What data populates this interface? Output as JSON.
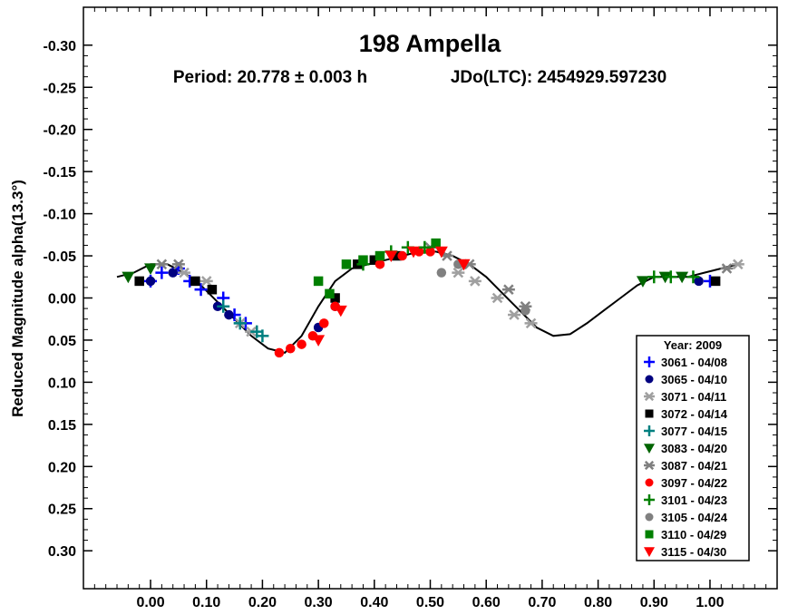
{
  "chart_data": {
    "type": "scatter",
    "title": "198 Ampella",
    "subtitle_period": "Period: 20.778 ± 0.003 h",
    "subtitle_epoch": "JDo(LTC): 2454929.597230",
    "xlabel": "",
    "ylabel": "Reduced Magnitude alpha(13.3°)",
    "xlim": [
      -0.12,
      1.12
    ],
    "ylim": [
      -0.345,
      0.345
    ],
    "y_inverted": true,
    "x_ticks": [
      "0.00",
      "0.10",
      "0.20",
      "0.30",
      "0.40",
      "0.50",
      "0.60",
      "0.70",
      "0.80",
      "0.90",
      "1.00"
    ],
    "x_tick_values": [
      0,
      0.1,
      0.2,
      0.3,
      0.4,
      0.5,
      0.6,
      0.7,
      0.8,
      0.9,
      1.0
    ],
    "y_ticks": [
      "-0.30",
      "-0.25",
      "-0.20",
      "-0.15",
      "-0.10",
      "-0.05",
      "0.00",
      "0.05",
      "0.10",
      "0.15",
      "0.20",
      "0.25",
      "0.30"
    ],
    "y_tick_values": [
      -0.3,
      -0.25,
      -0.2,
      -0.15,
      -0.1,
      -0.05,
      0.0,
      0.05,
      0.1,
      0.15,
      0.2,
      0.25,
      0.3
    ],
    "grid": false,
    "legend_position": "bottom-right",
    "legend_title": "Year: 2009",
    "fit_curve": {
      "x": [
        -0.06,
        -0.03,
        0.0,
        0.03,
        0.06,
        0.09,
        0.12,
        0.15,
        0.18,
        0.21,
        0.24,
        0.27,
        0.3,
        0.33,
        0.36,
        0.39,
        0.42,
        0.45,
        0.48,
        0.51,
        0.54,
        0.57,
        0.6,
        0.63,
        0.66,
        0.69,
        0.72,
        0.75,
        0.78,
        0.81,
        0.84,
        0.87,
        0.9,
        0.93,
        0.96,
        0.99,
        1.02,
        1.05
      ],
      "y": [
        -0.025,
        -0.03,
        -0.04,
        -0.04,
        -0.03,
        -0.015,
        0.005,
        0.025,
        0.045,
        0.06,
        0.065,
        0.045,
        0.01,
        -0.02,
        -0.035,
        -0.04,
        -0.045,
        -0.05,
        -0.055,
        -0.055,
        -0.05,
        -0.04,
        -0.025,
        -0.005,
        0.015,
        0.035,
        0.045,
        0.043,
        0.03,
        0.015,
        0.0,
        -0.015,
        -0.025,
        -0.025,
        -0.025,
        -0.03,
        -0.035,
        -0.04
      ]
    },
    "series": [
      {
        "name": "3061 - 04/08",
        "marker": "plus",
        "color": "#0000ff",
        "x": [
          0.0,
          0.02,
          0.05,
          0.07,
          0.09,
          0.13,
          0.15,
          0.17,
          1.0
        ],
        "y": [
          -0.02,
          -0.03,
          -0.035,
          -0.02,
          -0.01,
          0.0,
          0.02,
          0.03,
          -0.02
        ]
      },
      {
        "name": "3065 - 04/10",
        "marker": "circle",
        "color": "#000080",
        "x": [
          0.0,
          0.04,
          0.12,
          0.14,
          0.3,
          0.33,
          0.98
        ],
        "y": [
          -0.02,
          -0.03,
          0.01,
          0.02,
          0.035,
          0.01,
          -0.02
        ]
      },
      {
        "name": "3071 - 04/11",
        "marker": "asterisk",
        "color": "#a0a0a0",
        "x": [
          0.06,
          0.1,
          0.16,
          0.18,
          0.55,
          0.58,
          0.62,
          0.65,
          0.68,
          1.05
        ],
        "y": [
          -0.03,
          -0.02,
          0.03,
          0.04,
          -0.03,
          -0.02,
          0.0,
          0.02,
          0.03,
          -0.04
        ]
      },
      {
        "name": "3072 - 04/14",
        "marker": "square",
        "color": "#000000",
        "x": [
          -0.02,
          0.08,
          0.11,
          0.33,
          0.37,
          0.4,
          0.44,
          1.01
        ],
        "y": [
          -0.02,
          -0.02,
          -0.01,
          0.0,
          -0.04,
          -0.045,
          -0.05,
          -0.02
        ]
      },
      {
        "name": "3077 - 04/15",
        "marker": "plus",
        "color": "#008080",
        "x": [
          0.13,
          0.16,
          0.19,
          0.2
        ],
        "y": [
          0.01,
          0.03,
          0.04,
          0.045
        ]
      },
      {
        "name": "3083 - 04/20",
        "marker": "triangle-down",
        "color": "#006400",
        "x": [
          -0.04,
          0.0,
          0.88,
          0.92,
          0.95
        ],
        "y": [
          -0.025,
          -0.035,
          -0.02,
          -0.025,
          -0.025
        ]
      },
      {
        "name": "3087 - 04/21",
        "marker": "asterisk",
        "color": "#808080",
        "x": [
          0.02,
          0.05,
          0.5,
          0.53,
          0.57,
          0.64,
          0.67,
          1.03
        ],
        "y": [
          -0.04,
          -0.04,
          -0.06,
          -0.05,
          -0.04,
          -0.01,
          0.01,
          -0.035
        ]
      },
      {
        "name": "3097 - 04/22",
        "marker": "circle",
        "color": "#ff0000",
        "x": [
          0.23,
          0.25,
          0.27,
          0.29,
          0.31,
          0.33,
          0.41,
          0.45,
          0.48,
          0.5
        ],
        "y": [
          0.065,
          0.06,
          0.055,
          0.045,
          0.03,
          0.01,
          -0.04,
          -0.05,
          -0.055,
          -0.055
        ]
      },
      {
        "name": "3101 - 04/23",
        "marker": "plus",
        "color": "#008000",
        "x": [
          0.38,
          0.43,
          0.46,
          0.49,
          0.9,
          0.93,
          0.97
        ],
        "y": [
          -0.04,
          -0.055,
          -0.06,
          -0.06,
          -0.025,
          -0.025,
          -0.025
        ]
      },
      {
        "name": "3105 - 04/24",
        "marker": "circle",
        "color": "#808080",
        "x": [
          0.52,
          0.55,
          0.67
        ],
        "y": [
          -0.03,
          -0.04,
          0.015
        ]
      },
      {
        "name": "3110 - 04/29",
        "marker": "square",
        "color": "#008000",
        "x": [
          0.3,
          0.32,
          0.35,
          0.38,
          0.41,
          0.51
        ],
        "y": [
          -0.02,
          -0.005,
          -0.04,
          -0.045,
          -0.05,
          -0.065
        ]
      },
      {
        "name": "3115 - 04/30",
        "marker": "triangle-down",
        "color": "#ff0000",
        "x": [
          0.3,
          0.34,
          0.43,
          0.47,
          0.52,
          0.56
        ],
        "y": [
          0.05,
          0.015,
          -0.05,
          -0.055,
          -0.055,
          -0.04
        ]
      }
    ]
  }
}
